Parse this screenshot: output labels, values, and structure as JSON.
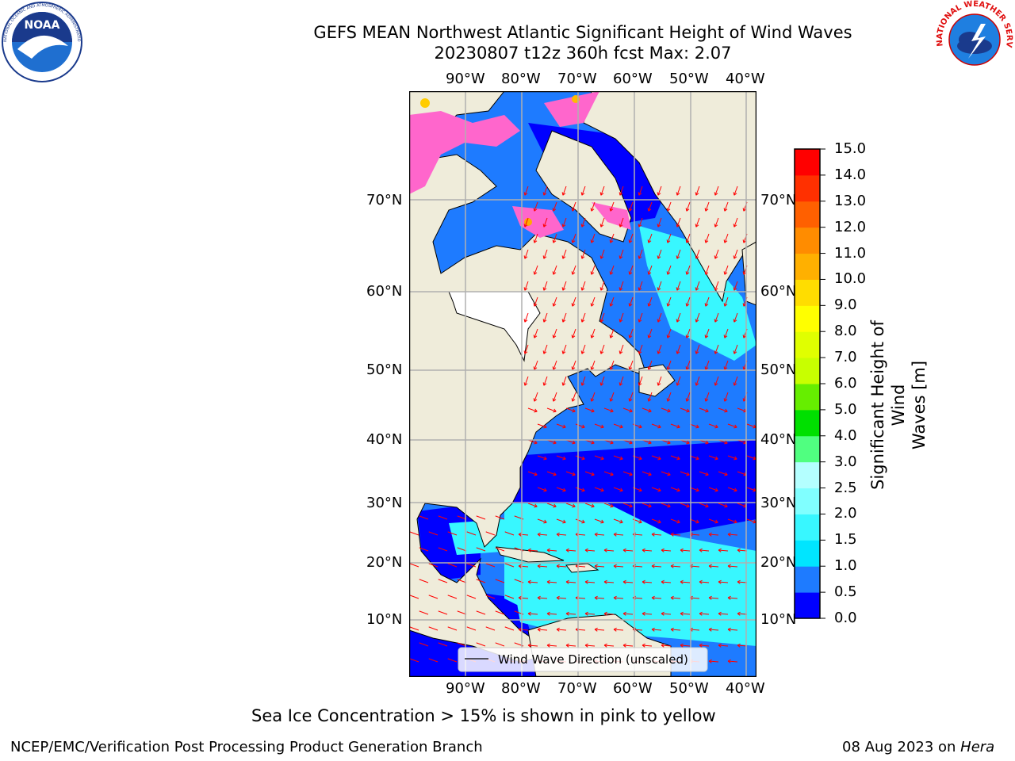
{
  "header": {
    "title_line1": "GEFS MEAN Northwest Atlantic Significant Height of Wind Waves",
    "title_line2": "20230807 t12z 360h fcst   Max: 2.07"
  },
  "logos": {
    "left": "NOAA",
    "left_ring": "NATIONAL OCEANIC AND ATMOSPHERIC ADMINISTRATION · U.S. DEPARTMENT OF COMMERCE",
    "right_ring": "NATIONAL WEATHER SERVICE"
  },
  "map": {
    "lon_labels": [
      "90°W",
      "80°W",
      "70°W",
      "60°W",
      "50°W",
      "40°W"
    ],
    "lat_labels": [
      "70°N",
      "60°N",
      "50°N",
      "40°N",
      "30°N",
      "20°N",
      "10°N"
    ],
    "legend_label": "Wind Wave Direction (unscaled)"
  },
  "colorbar": {
    "label_line1": "Significant Height of Wind",
    "label_line2": "Waves [m]",
    "ticks": [
      "0.0",
      "0.5",
      "1.0",
      "1.5",
      "2.0",
      "2.5",
      "3.0",
      "4.0",
      "5.0",
      "6.0",
      "7.0",
      "8.0",
      "9.0",
      "10.0",
      "11.0",
      "12.0",
      "13.0",
      "14.0",
      "15.0"
    ],
    "colors": [
      "#0000ff",
      "#1e7bff",
      "#00e5ff",
      "#38f7ff",
      "#80ffff",
      "#b4ffff",
      "#50ff80",
      "#00e000",
      "#66ee00",
      "#c8ff00",
      "#e0ff00",
      "#ffff00",
      "#ffdd00",
      "#ffb000",
      "#ff8c00",
      "#ff6000",
      "#ff3000",
      "#ff0000"
    ]
  },
  "note": "Sea Ice Concentration > 15% is shown in pink to yellow",
  "footer": {
    "left": "NCEP/EMC/Verification Post Processing Product Generation Branch",
    "date": "08 Aug 2023 on ",
    "host": "Hera"
  },
  "colors": {
    "land": "#efecda",
    "ocean_low": "#0000ff",
    "ocean_mid": "#1e7bff",
    "ocean_high": "#38f7ff",
    "ice": "#ff66cc",
    "arrows": "#ff0000",
    "grid": "#b0b0b0"
  }
}
